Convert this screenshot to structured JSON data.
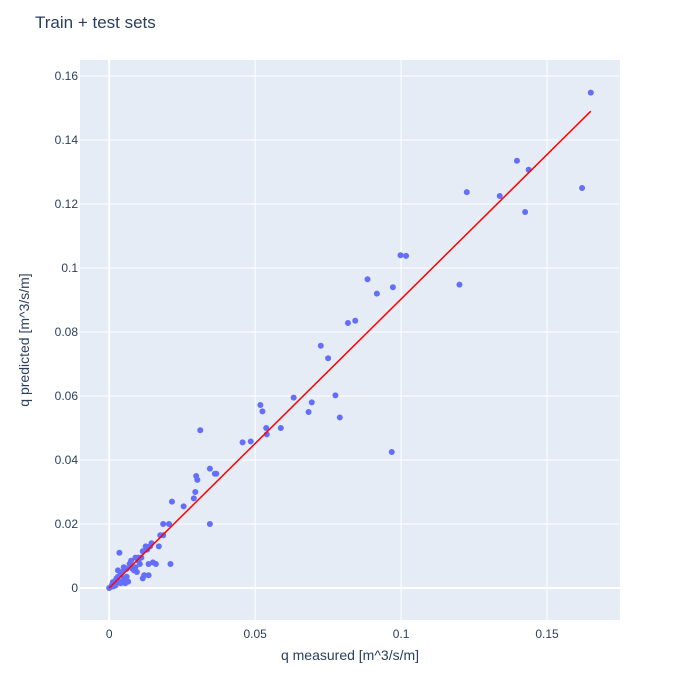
{
  "chart_data": {
    "type": "scatter",
    "title": "Train + test sets",
    "xlabel": "q measured [m^3/s/m]",
    "ylabel": "q predicted [m^3/s/m]",
    "xlim": [
      -0.01,
      0.175
    ],
    "ylim": [
      -0.01,
      0.165
    ],
    "x_ticks": [
      0,
      0.05,
      0.1,
      0.15
    ],
    "x_tick_labels": [
      "0",
      "0.05",
      "0.1",
      "0.15"
    ],
    "y_ticks": [
      0,
      0.02,
      0.04,
      0.06,
      0.08,
      0.1,
      0.12,
      0.14,
      0.16
    ],
    "y_tick_labels": [
      "0",
      "0.02",
      "0.04",
      "0.06",
      "0.08",
      "0.1",
      "0.12",
      "0.14",
      "0.16"
    ],
    "grid": true,
    "colors": {
      "plot_background": "#e5ecf6",
      "grid": "#ffffff",
      "points": "#636efa",
      "fit_line": "#ff0000",
      "text": "#2a3f5f"
    },
    "series": [
      {
        "mode": "markers",
        "points": [
          [
            0.0,
            0.0
          ],
          [
            0.0005,
            0.0003
          ],
          [
            0.001,
            0.001
          ],
          [
            0.0012,
            0.0018
          ],
          [
            0.0015,
            0.0005
          ],
          [
            0.002,
            0.0022
          ],
          [
            0.0022,
            0.0008
          ],
          [
            0.0025,
            0.003
          ],
          [
            0.003,
            0.0035
          ],
          [
            0.003,
            0.0055
          ],
          [
            0.0035,
            0.011
          ],
          [
            0.0035,
            0.002
          ],
          [
            0.004,
            0.0045
          ],
          [
            0.004,
            0.0015
          ],
          [
            0.0045,
            0.005
          ],
          [
            0.005,
            0.0065
          ],
          [
            0.005,
            0.003
          ],
          [
            0.0055,
            0.0015
          ],
          [
            0.006,
            0.006
          ],
          [
            0.006,
            0.0035
          ],
          [
            0.0065,
            0.002
          ],
          [
            0.007,
            0.0075
          ],
          [
            0.0075,
            0.0085
          ],
          [
            0.008,
            0.006
          ],
          [
            0.0085,
            0.0055
          ],
          [
            0.009,
            0.0065
          ],
          [
            0.009,
            0.0095
          ],
          [
            0.0095,
            0.005
          ],
          [
            0.01,
            0.0085
          ],
          [
            0.01,
            0.0095
          ],
          [
            0.0105,
            0.0075
          ],
          [
            0.011,
            0.0095
          ],
          [
            0.0115,
            0.0115
          ],
          [
            0.0115,
            0.003
          ],
          [
            0.012,
            0.004
          ],
          [
            0.0125,
            0.013
          ],
          [
            0.013,
            0.012
          ],
          [
            0.0135,
            0.004
          ],
          [
            0.0135,
            0.0075
          ],
          [
            0.014,
            0.013
          ],
          [
            0.0145,
            0.014
          ],
          [
            0.015,
            0.008
          ],
          [
            0.016,
            0.0075
          ],
          [
            0.017,
            0.013
          ],
          [
            0.0175,
            0.0165
          ],
          [
            0.0185,
            0.0165
          ],
          [
            0.0185,
            0.02
          ],
          [
            0.0205,
            0.02
          ],
          [
            0.021,
            0.0075
          ],
          [
            0.0215,
            0.027
          ],
          [
            0.0255,
            0.0255
          ],
          [
            0.029,
            0.028
          ],
          [
            0.0295,
            0.03
          ],
          [
            0.0298,
            0.035
          ],
          [
            0.0302,
            0.0338
          ],
          [
            0.0312,
            0.0493
          ],
          [
            0.0345,
            0.0373
          ],
          [
            0.0345,
            0.02
          ],
          [
            0.0362,
            0.0357
          ],
          [
            0.0367,
            0.0357
          ],
          [
            0.0457,
            0.0455
          ],
          [
            0.0485,
            0.0458
          ],
          [
            0.0518,
            0.0572
          ],
          [
            0.0525,
            0.0552
          ],
          [
            0.0538,
            0.05
          ],
          [
            0.054,
            0.048
          ],
          [
            0.0588,
            0.05
          ],
          [
            0.0632,
            0.0595
          ],
          [
            0.0683,
            0.055
          ],
          [
            0.0694,
            0.058
          ],
          [
            0.0725,
            0.0757
          ],
          [
            0.075,
            0.0718
          ],
          [
            0.0775,
            0.0602
          ],
          [
            0.079,
            0.0533
          ],
          [
            0.0818,
            0.0828
          ],
          [
            0.0843,
            0.0835
          ],
          [
            0.0885,
            0.0965
          ],
          [
            0.0917,
            0.092
          ],
          [
            0.0968,
            0.0425
          ],
          [
            0.0972,
            0.094
          ],
          [
            0.0998,
            0.104
          ],
          [
            0.1017,
            0.1038
          ],
          [
            0.12,
            0.0948
          ],
          [
            0.1225,
            0.1237
          ],
          [
            0.1338,
            0.1225
          ],
          [
            0.1397,
            0.1335
          ],
          [
            0.1425,
            0.1175
          ],
          [
            0.1437,
            0.1307
          ],
          [
            0.162,
            0.125
          ],
          [
            0.165,
            0.1548
          ]
        ]
      },
      {
        "mode": "line",
        "points": [
          [
            0.0,
            0.0
          ],
          [
            0.165,
            0.149
          ]
        ]
      }
    ]
  }
}
